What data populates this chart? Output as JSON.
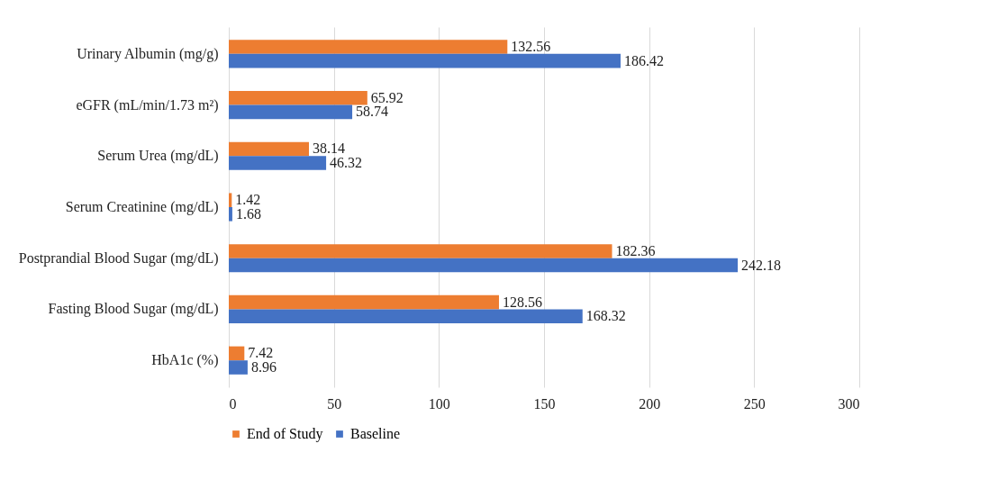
{
  "chart_data": {
    "type": "bar",
    "orientation": "horizontal",
    "categories": [
      "Urinary Albumin (mg/g)",
      "eGFR (mL/min/1.73 m²)",
      "Serum Urea (mg/dL)",
      "Serum Creatinine (mg/dL)",
      "Postprandial Blood Sugar (mg/dL)",
      "Fasting Blood Sugar (mg/dL)",
      "HbA1c (%)"
    ],
    "series": [
      {
        "name": "End of Study",
        "color": "#ed7d31",
        "values": [
          132.56,
          65.92,
          38.14,
          1.42,
          182.36,
          128.56,
          7.42
        ]
      },
      {
        "name": "Baseline",
        "color": "#4472c4",
        "values": [
          186.42,
          58.74,
          46.32,
          1.68,
          242.18,
          168.32,
          8.96
        ]
      }
    ],
    "xlim": [
      0,
      300
    ],
    "xticks": [
      0,
      50,
      100,
      150,
      200,
      250,
      300
    ],
    "grid": "x",
    "legend": "bottom",
    "data_labels": true
  }
}
